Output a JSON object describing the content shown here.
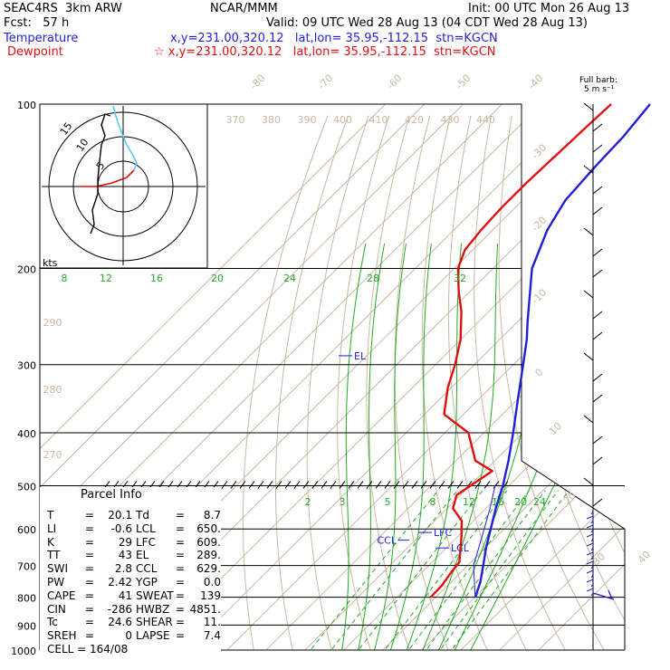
{
  "header": {
    "model": "SEAC4RS  3km ARW",
    "org": "NCAR/MMM",
    "init": "Init: 00 UTC Mon 26 Aug 13",
    "fcst": "Fcst:   57 h",
    "valid": "Valid: 09 UTC Wed 28 Aug 13 (04 CDT Wed 28 Aug 13)",
    "temp_label": "Temperature",
    "temp_loc": "x,y=231.00,320.12   lat,lon= 35.95,-112.15  stn=KGCN",
    "dew_label": "Dewpoint",
    "dew_loc": "☆ x,y=231.00,320.12   lat,lon= 35.95,-112.15  stn=KGCN",
    "barb_label1": "Full barb:",
    "barb_label2": "5 m s⁻¹"
  },
  "colors": {
    "temperature": "#1f1fd6",
    "dewpoint": "#e01010",
    "isotherm": "#c9b8a3",
    "mixing_ratio": "#22aa22",
    "hodo_low": "#e01010",
    "hodo_high": "#5ec8e8"
  },
  "chart_data": {
    "type": "line",
    "title": "",
    "y_axis": "pressure (hPa), log scale",
    "pressure_ticks": [
      100,
      200,
      300,
      400,
      500,
      600,
      700,
      800,
      900,
      1000
    ],
    "pressure_tick_labels": [
      "100",
      "200",
      "300",
      "400",
      "500",
      "600",
      "700",
      "800",
      "900",
      "1000"
    ],
    "isotherm_labels": [
      "-80",
      "-70",
      "-60",
      "-50",
      "-40",
      "-30",
      "-20",
      "-10",
      "0",
      "10",
      "20",
      "30",
      "40"
    ],
    "theta_labels_top": [
      "370",
      "380",
      "390",
      "400",
      "410",
      "420",
      "430",
      "440"
    ],
    "theta_labels_left": [
      "290",
      "280",
      "270"
    ],
    "mixing_labels_upper": [
      "8",
      "12",
      "16",
      "20",
      "24",
      "28",
      "32"
    ],
    "mixing_labels_lower": [
      "2",
      "3",
      "5",
      "8",
      "12",
      "16",
      "20",
      "24"
    ],
    "series": [
      {
        "name": "Temperature",
        "values": [
          [
            800,
            20.1
          ],
          [
            750,
            17.5
          ],
          [
            700,
            14.0
          ],
          [
            650,
            10.2
          ],
          [
            600,
            6.5
          ],
          [
            550,
            2.5
          ],
          [
            500,
            -1.5
          ],
          [
            450,
            -6.5
          ],
          [
            400,
            -12.5
          ],
          [
            350,
            -19.5
          ],
          [
            300,
            -27.5
          ],
          [
            270,
            -33.0
          ],
          [
            250,
            -37.5
          ],
          [
            200,
            -50.0
          ],
          [
            170,
            -56.0
          ],
          [
            150,
            -59.0
          ],
          [
            130,
            -60.0
          ],
          [
            115,
            -60.5
          ],
          [
            100,
            -62.0
          ]
        ]
      },
      {
        "name": "Dewpoint",
        "values": [
          [
            800,
            8.7
          ],
          [
            760,
            8.5
          ],
          [
            720,
            7.5
          ],
          [
            690,
            7.0
          ],
          [
            660,
            4.5
          ],
          [
            620,
            1.0
          ],
          [
            580,
            -3.0
          ],
          [
            550,
            -8.5
          ],
          [
            520,
            -11.0
          ],
          [
            470,
            -8.0
          ],
          [
            450,
            -15.0
          ],
          [
            400,
            -24.0
          ],
          [
            370,
            -35.0
          ],
          [
            330,
            -41.0
          ],
          [
            300,
            -45.0
          ],
          [
            270,
            -50.0
          ],
          [
            240,
            -57.0
          ],
          [
            220,
            -63.0
          ],
          [
            200,
            -69.0
          ],
          [
            185,
            -72.0
          ],
          [
            170,
            -73.0
          ],
          [
            155,
            -73.5
          ],
          [
            140,
            -73.5
          ],
          [
            125,
            -73.0
          ],
          [
            110,
            -72.5
          ],
          [
            100,
            -72.0
          ]
        ]
      }
    ],
    "annotations": [
      {
        "label": "EL",
        "pressure": 289
      },
      {
        "label": "LFC",
        "pressure": 609
      },
      {
        "label": "CCL",
        "pressure": 629
      },
      {
        "label": "LCL",
        "pressure": 650
      }
    ],
    "hodograph": {
      "rings_label": [
        "5",
        "10",
        "15"
      ],
      "units_label": "kts"
    }
  },
  "parcel": {
    "title": "Parcel Info",
    "rows": [
      [
        "T",
        "=",
        "20.1",
        "Td",
        "=",
        "8.7"
      ],
      [
        "LI",
        "=",
        "-0.6",
        "LCL",
        "=",
        "650."
      ],
      [
        "K",
        "=",
        "29",
        "LFC",
        "=",
        "609."
      ],
      [
        "TT",
        "=",
        "43",
        "EL",
        "=",
        "289."
      ],
      [
        "SWI",
        "=",
        "2.8",
        "CCL",
        "=",
        "629."
      ],
      [
        "PW",
        "=",
        "2.42",
        "YGP",
        "=",
        "0.0"
      ],
      [
        "CAPE",
        "=",
        "41",
        "SWEAT",
        "=",
        "139"
      ],
      [
        "CIN",
        "=",
        "-286",
        "HWBZ",
        "=",
        "4851."
      ],
      [
        "Tc",
        "=",
        "24.6",
        "SHEAR",
        "=",
        "11."
      ],
      [
        "SREH",
        "=",
        "0",
        "LAPSE",
        "=",
        "7.4"
      ]
    ],
    "cell": "CELL = 164/08"
  }
}
